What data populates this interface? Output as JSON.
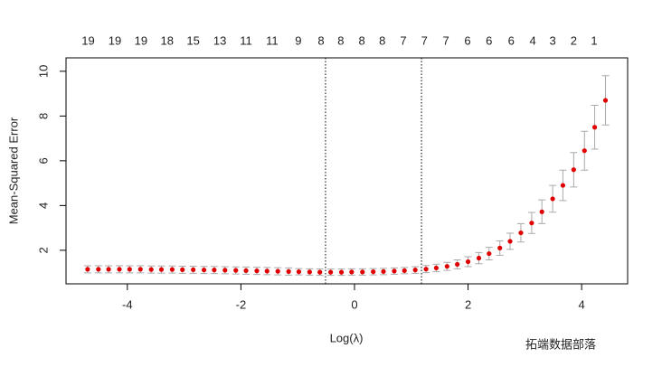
{
  "chart_data": {
    "type": "errorbar",
    "xlabel": "Log(λ)",
    "ylabel": "Mean-Squared Error",
    "x": [
      -4.7,
      -4.51,
      -4.33,
      -4.14,
      -3.96,
      -3.77,
      -3.58,
      -3.4,
      -3.21,
      -3.03,
      -2.84,
      -2.65,
      -2.47,
      -2.28,
      -2.09,
      -1.91,
      -1.72,
      -1.54,
      -1.35,
      -1.16,
      -0.98,
      -0.79,
      -0.61,
      -0.42,
      -0.23,
      -0.05,
      0.14,
      0.33,
      0.51,
      0.7,
      0.88,
      1.07,
      1.26,
      1.44,
      1.63,
      1.81,
      2.0,
      2.19,
      2.37,
      2.56,
      2.74,
      2.93,
      3.12,
      3.3,
      3.49,
      3.67,
      3.86,
      4.05,
      4.23,
      4.42
    ],
    "values": [
      1.15,
      1.15,
      1.15,
      1.15,
      1.15,
      1.15,
      1.14,
      1.14,
      1.14,
      1.13,
      1.13,
      1.12,
      1.12,
      1.11,
      1.1,
      1.09,
      1.08,
      1.07,
      1.06,
      1.05,
      1.04,
      1.03,
      1.02,
      1.02,
      1.02,
      1.03,
      1.03,
      1.04,
      1.05,
      1.07,
      1.09,
      1.12,
      1.16,
      1.21,
      1.28,
      1.37,
      1.49,
      1.65,
      1.85,
      2.1,
      2.4,
      2.78,
      3.22,
      3.72,
      4.3,
      4.9,
      5.6,
      6.45,
      7.5,
      8.7
    ],
    "errors": [
      0.16,
      0.16,
      0.16,
      0.16,
      0.16,
      0.16,
      0.16,
      0.16,
      0.16,
      0.16,
      0.16,
      0.16,
      0.16,
      0.16,
      0.16,
      0.16,
      0.16,
      0.16,
      0.16,
      0.16,
      0.14,
      0.14,
      0.14,
      0.14,
      0.14,
      0.14,
      0.14,
      0.14,
      0.14,
      0.14,
      0.14,
      0.15,
      0.16,
      0.17,
      0.18,
      0.2,
      0.22,
      0.25,
      0.28,
      0.32,
      0.36,
      0.41,
      0.47,
      0.53,
      0.6,
      0.68,
      0.77,
      0.87,
      0.98,
      1.1
    ],
    "color": "#e00000",
    "error_color": "#aaaaaa",
    "vlines": [
      -0.51,
      1.18
    ],
    "xlim": [
      -5.08,
      4.81
    ],
    "ylim": [
      0.5,
      10.6
    ],
    "xticks": [
      -4,
      -2,
      0,
      2,
      4
    ],
    "yticks": [
      2,
      4,
      6,
      8,
      10
    ],
    "top_ticks": [
      {
        "value": -4.69,
        "label": "19"
      },
      {
        "value": -4.22,
        "label": "19"
      },
      {
        "value": -3.76,
        "label": "19"
      },
      {
        "value": -3.3,
        "label": "18"
      },
      {
        "value": -2.84,
        "label": "15"
      },
      {
        "value": -2.37,
        "label": "13"
      },
      {
        "value": -1.91,
        "label": "11"
      },
      {
        "value": -1.45,
        "label": "11"
      },
      {
        "value": -0.99,
        "label": "9"
      },
      {
        "value": -0.59,
        "label": "8"
      },
      {
        "value": -0.24,
        "label": "8"
      },
      {
        "value": 0.13,
        "label": "8"
      },
      {
        "value": 0.49,
        "label": "8"
      },
      {
        "value": 0.86,
        "label": "7"
      },
      {
        "value": 1.23,
        "label": "7"
      },
      {
        "value": 1.61,
        "label": "7"
      },
      {
        "value": 1.99,
        "label": "6"
      },
      {
        "value": 2.37,
        "label": "6"
      },
      {
        "value": 2.76,
        "label": "6"
      },
      {
        "value": 3.14,
        "label": "4"
      },
      {
        "value": 3.49,
        "label": "3"
      },
      {
        "value": 3.86,
        "label": "2"
      },
      {
        "value": 4.22,
        "label": "1"
      }
    ],
    "watermark": "拓端数据部落"
  }
}
